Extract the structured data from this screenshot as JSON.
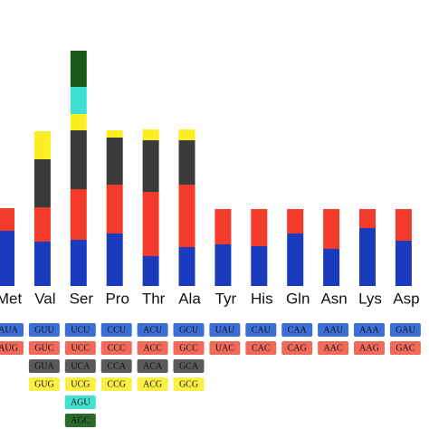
{
  "chart_data": {
    "type": "stacked-bar",
    "categories": [
      "Met",
      "Val",
      "Ser",
      "Pro",
      "Thr",
      "Ala",
      "Tyr",
      "His",
      "Gln",
      "Asn",
      "Lys",
      "Asp"
    ],
    "series": [
      {
        "color": "#1a3bbd",
        "values": [
          61,
          49,
          51,
          58,
          33,
          43,
          46,
          44,
          58,
          41,
          64,
          50
        ]
      },
      {
        "color": "#f23b2a",
        "values": [
          25,
          38,
          56,
          54,
          71,
          69,
          39,
          41,
          27,
          44,
          21,
          35
        ]
      },
      {
        "color": "#3b3b3b",
        "values": [
          null,
          53,
          65,
          52,
          57,
          49,
          null,
          null,
          null,
          null,
          null,
          null
        ]
      },
      {
        "color": "#fbee23",
        "values": [
          null,
          31,
          18,
          8,
          12,
          12,
          null,
          null,
          null,
          null,
          null,
          null
        ]
      },
      {
        "color": "#3fe0d2",
        "values": [
          null,
          null,
          30,
          null,
          null,
          null,
          null,
          null,
          null,
          null,
          null,
          null
        ]
      },
      {
        "color": "#1b5a1b",
        "values": [
          null,
          null,
          40,
          null,
          null,
          null,
          null,
          null,
          null,
          null,
          null,
          null
        ]
      }
    ],
    "box_colors": [
      "#3d6ed6",
      "#ef6a59",
      "#5a5a5a",
      "#fbee44",
      "#44e0d0",
      "#2c6a2c"
    ],
    "codons": [
      [
        "AUA",
        "AUG"
      ],
      [
        "GUU",
        "GUC",
        "GUA",
        "GUG"
      ],
      [
        "UCU",
        "UCC",
        "UCA",
        "UCG",
        "AGU",
        "AGC"
      ],
      [
        "CCU",
        "CCC",
        "CCA",
        "CCG"
      ],
      [
        "ACU",
        "ACC",
        "ACA",
        "ACG"
      ],
      [
        "GCU",
        "GCC",
        "GCA",
        "GCG"
      ],
      [
        "UAU",
        "UAC"
      ],
      [
        "CAU",
        "CAC"
      ],
      [
        "CAA",
        "CAG"
      ],
      [
        "AAU",
        "AAC"
      ],
      [
        "AAA",
        "AAG"
      ],
      [
        "GAU",
        "GAC"
      ]
    ],
    "ylim": [
      0,
      270
    ]
  }
}
